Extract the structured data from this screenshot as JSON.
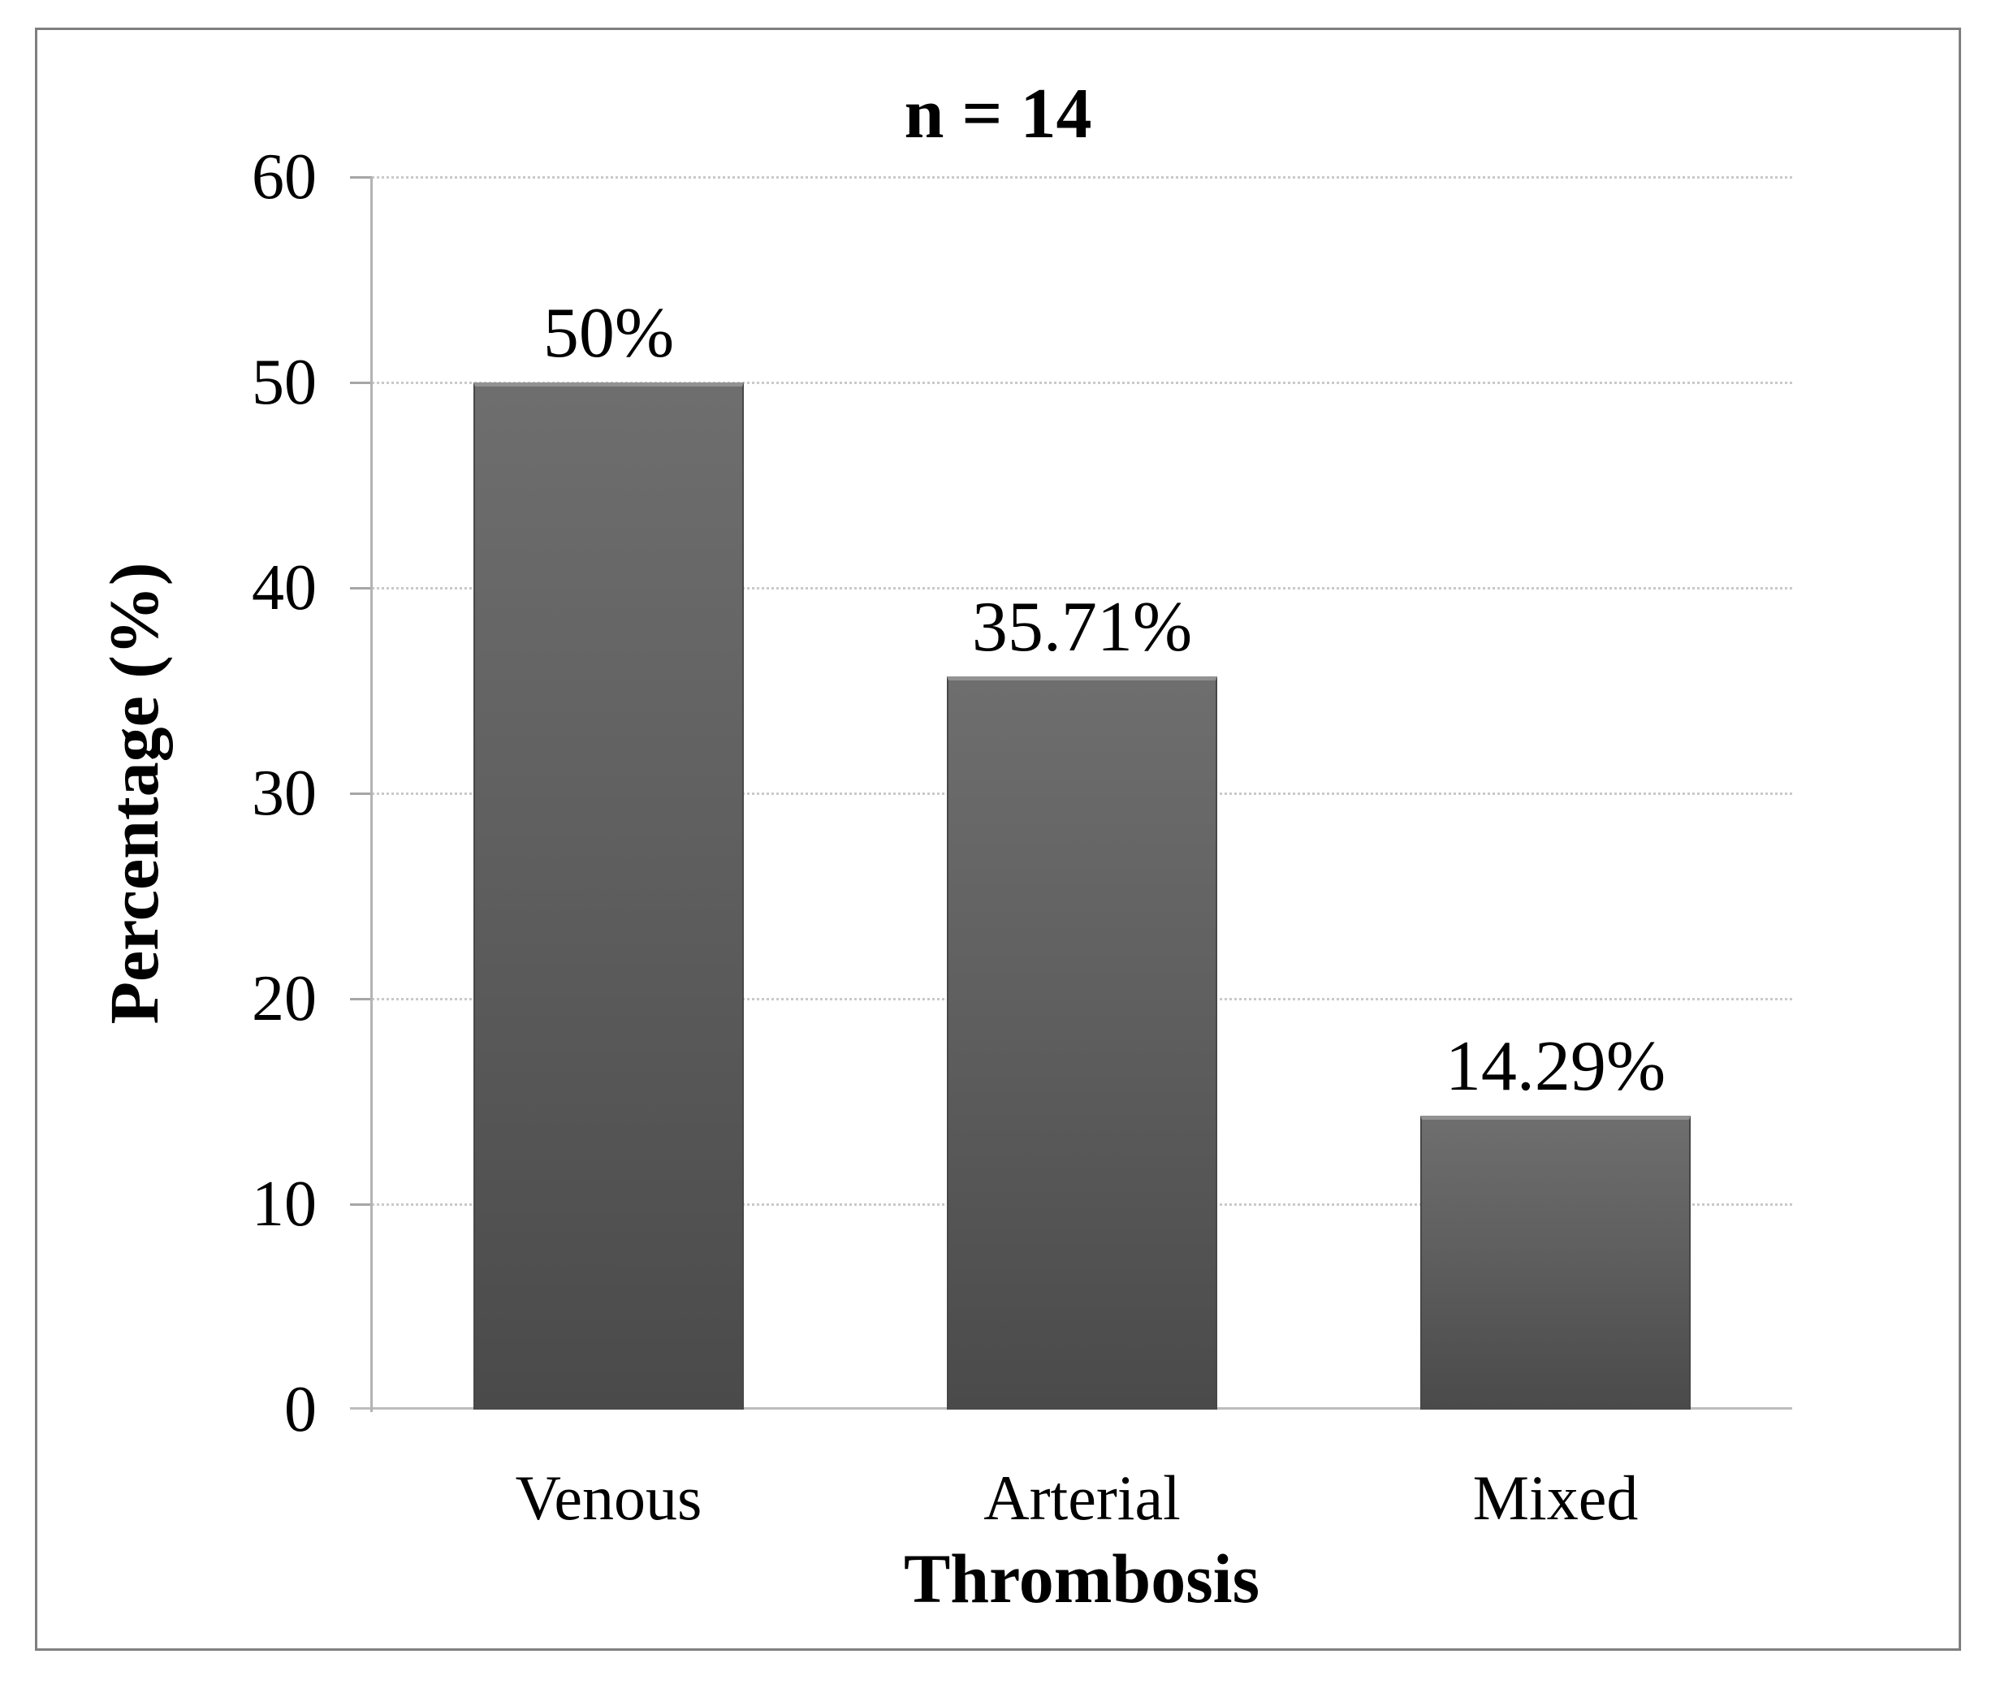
{
  "chart_data": {
    "type": "bar",
    "title": "n = 14",
    "categories": [
      "Venous",
      "Arterial",
      "Mixed"
    ],
    "values": [
      50,
      35.71,
      14.29
    ],
    "value_labels": [
      "50%",
      "35.71%",
      "14.29%"
    ],
    "xlabel": "Thrombosis",
    "ylabel": "Percentage (%)",
    "ylim": [
      0,
      60
    ],
    "yticks": [
      0,
      10,
      20,
      30,
      40,
      50,
      60
    ],
    "grid": "horizontal-dotted",
    "legend_position": "none",
    "colors": {
      "bar_fill": "#5f5f5f",
      "bar_top_edge": "#929292",
      "bar_side_edge": "#474747",
      "gridline": "#c9c9c9",
      "axis_line": "#b3b3b3",
      "frame_border": "#7f7f7f",
      "text": "#000000",
      "background": "#ffffff"
    }
  }
}
